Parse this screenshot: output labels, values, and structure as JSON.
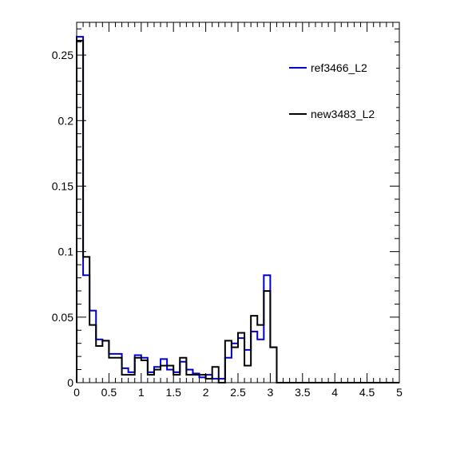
{
  "chart_data": {
    "type": "histogram",
    "title": "",
    "xlabel": "",
    "ylabel": "",
    "xlim": [
      0,
      5
    ],
    "ylim": [
      0,
      0.275
    ],
    "grid": false,
    "legend_position": "top-right",
    "bin_width": 0.1,
    "x_ticks": [
      0,
      0.5,
      1,
      1.5,
      2,
      2.5,
      3,
      3.5,
      4,
      4.5,
      5
    ],
    "x_tick_labels": [
      "0",
      "0.5",
      "1",
      "1.5",
      "2",
      "2.5",
      "3",
      "3.5",
      "4",
      "4.5",
      "5"
    ],
    "y_ticks": [
      0,
      0.05,
      0.1,
      0.15,
      0.2,
      0.25
    ],
    "y_tick_labels": [
      "0",
      "0.05",
      "0.1",
      "0.15",
      "0.2",
      "0.25"
    ],
    "series": [
      {
        "name": "ref3466_L2",
        "color": "#0000cc",
        "values": [
          0.264,
          0.082,
          0.055,
          0.033,
          0.032,
          0.022,
          0.022,
          0.011,
          0.008,
          0.021,
          0.019,
          0.008,
          0.012,
          0.018,
          0.01,
          0.008,
          0.016,
          0.01,
          0.007,
          0.004,
          0.006,
          0.003,
          0.003,
          0.019,
          0.03,
          0.034,
          0.025,
          0.039,
          0.033,
          0.082,
          0.027,
          0,
          0,
          0,
          0,
          0,
          0,
          0,
          0,
          0,
          0,
          0,
          0,
          0,
          0,
          0,
          0,
          0,
          0,
          0
        ]
      },
      {
        "name": "new3483_L2",
        "color": "#000000",
        "values": [
          0.261,
          0.096,
          0.044,
          0.028,
          0.032,
          0.019,
          0.019,
          0.006,
          0.006,
          0.019,
          0.017,
          0.006,
          0.01,
          0.013,
          0.013,
          0.006,
          0.019,
          0.006,
          0.006,
          0.006,
          0.003,
          0.012,
          0.0,
          0.032,
          0.027,
          0.038,
          0.013,
          0.051,
          0.044,
          0.07,
          0.027,
          0,
          0,
          0,
          0,
          0,
          0,
          0,
          0,
          0,
          0,
          0,
          0,
          0,
          0,
          0,
          0,
          0,
          0,
          0
        ]
      }
    ]
  }
}
